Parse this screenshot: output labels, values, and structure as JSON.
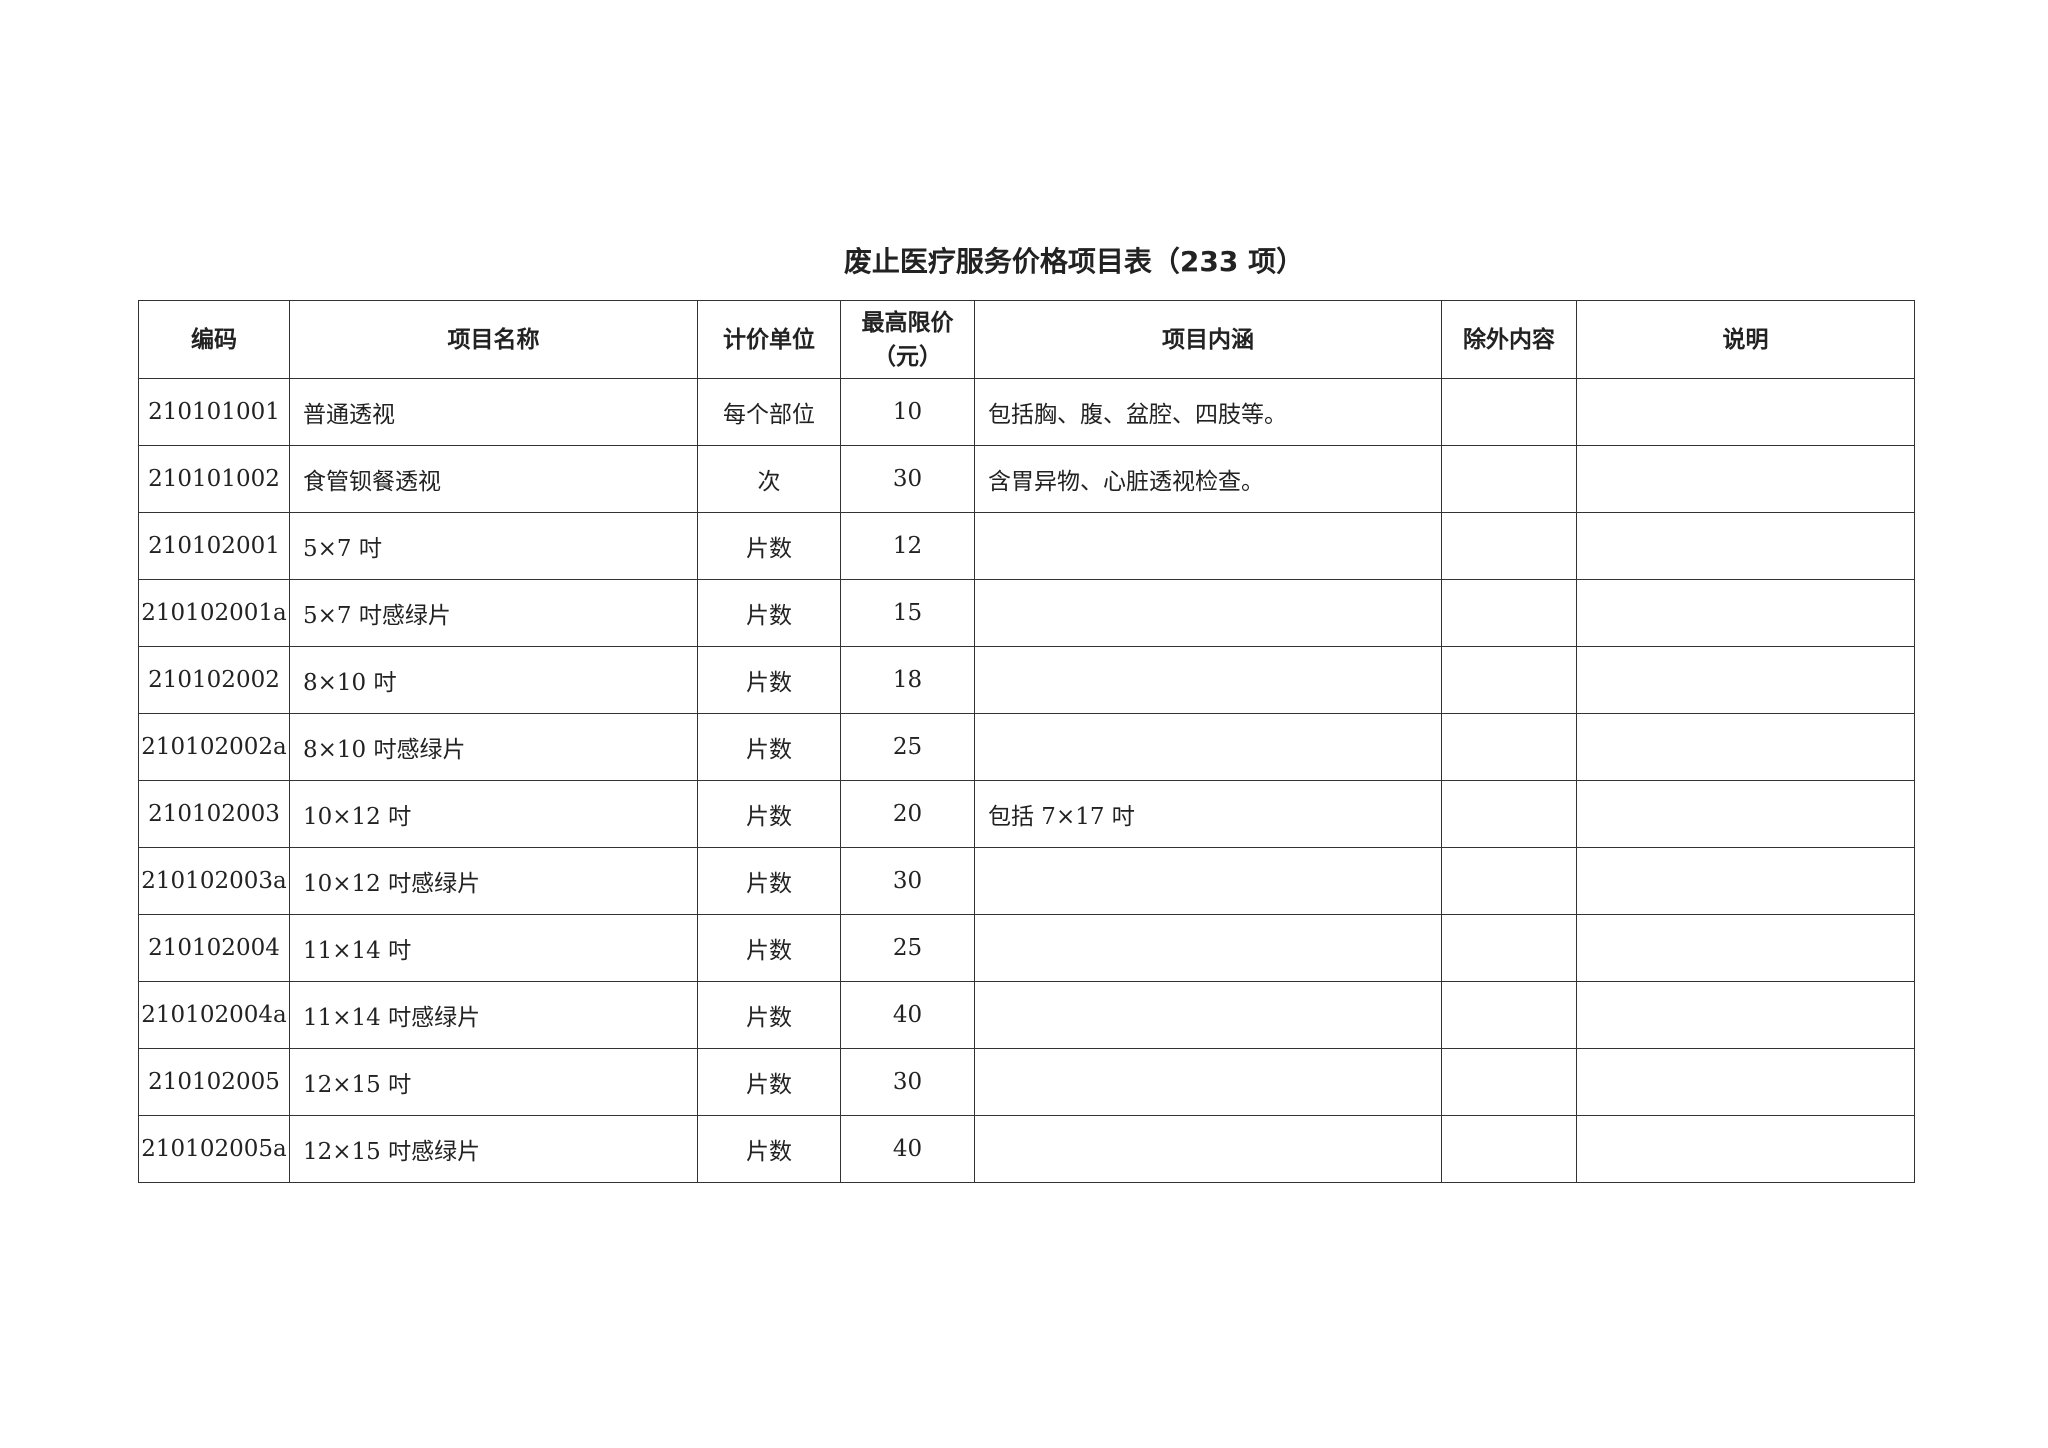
{
  "title": "废止医疗服务价格项目表（233 项）",
  "headers": [
    "编码",
    "项目名称",
    "计价单位",
    "最高限价",
    "（元）",
    "项目内涵",
    "除外内容",
    "说明"
  ],
  "rows": [
    {
      "code": "210101001",
      "name": "普通透视",
      "unit": "每个部位",
      "price": "10",
      "content": "包括胸、腹、盆腔、四肢等。",
      "except": "",
      "note": ""
    },
    {
      "code": "210101002",
      "name": "食管钡餐透视",
      "unit": "次",
      "price": "30",
      "content": "含胃异物、心脏透视检查。",
      "except": "",
      "note": ""
    },
    {
      "code": "210102001",
      "name": "5×7 吋",
      "unit": "片数",
      "price": "12",
      "content": "",
      "except": "",
      "note": ""
    },
    {
      "code": "210102001a",
      "name": "5×7 吋感绿片",
      "unit": "片数",
      "price": "15",
      "content": "",
      "except": "",
      "note": ""
    },
    {
      "code": "210102002",
      "name": "8×10 吋",
      "unit": "片数",
      "price": "18",
      "content": "",
      "except": "",
      "note": ""
    },
    {
      "code": "210102002a",
      "name": "8×10 吋感绿片",
      "unit": "片数",
      "price": "25",
      "content": "",
      "except": "",
      "note": ""
    },
    {
      "code": "210102003",
      "name": "10×12 吋",
      "unit": "片数",
      "price": "20",
      "content": "包括 7×17 吋",
      "except": "",
      "note": ""
    },
    {
      "code": "210102003a",
      "name": "10×12 吋感绿片",
      "unit": "片数",
      "price": "30",
      "content": "",
      "except": "",
      "note": ""
    },
    {
      "code": "210102004",
      "name": "11×14 吋",
      "unit": "片数",
      "price": "25",
      "content": "",
      "except": "",
      "note": ""
    },
    {
      "code": "210102004a",
      "name": "11×14 吋感绿片",
      "unit": "片数",
      "price": "40",
      "content": "",
      "except": "",
      "note": ""
    },
    {
      "code": "210102005",
      "name": "12×15 吋",
      "unit": "片数",
      "price": "30",
      "content": "",
      "except": "",
      "note": ""
    },
    {
      "code": "210102005a",
      "name": "12×15 吋感绿片",
      "unit": "片数",
      "price": "40",
      "content": "",
      "except": "",
      "note": ""
    }
  ]
}
